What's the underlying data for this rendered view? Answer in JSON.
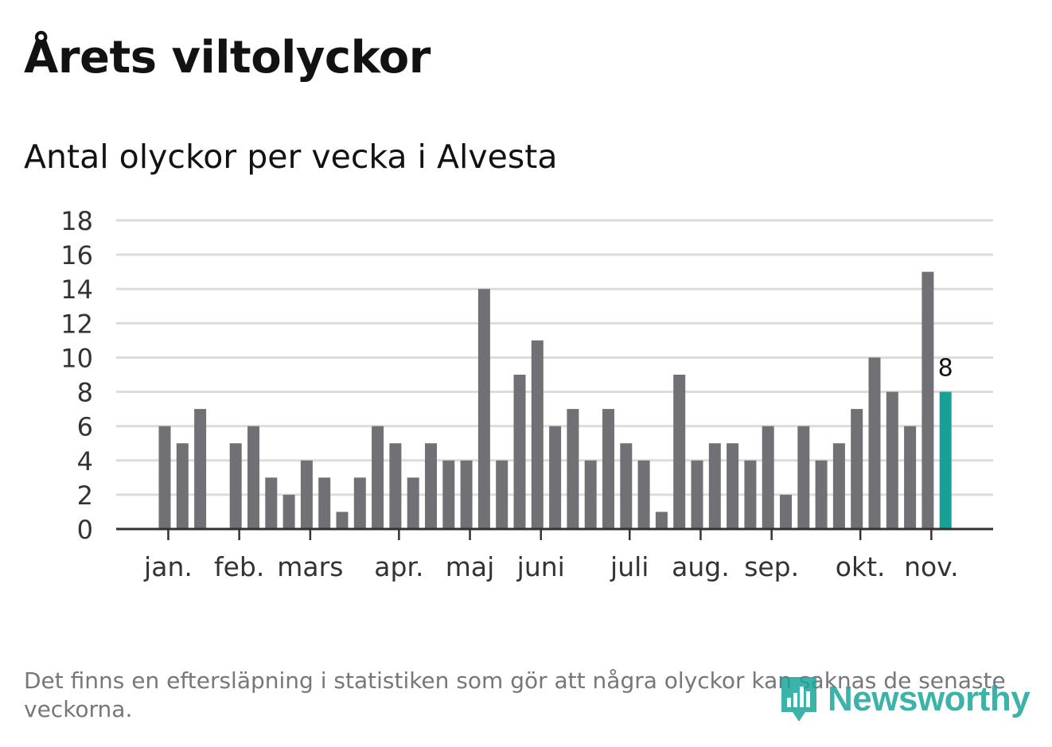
{
  "header": {
    "title": "Årets viltolyckor",
    "subtitle": "Antal olyckor per vecka i Alvesta"
  },
  "footer": {
    "note": "Det finns en eftersläpning i statistiken som gör att några olyckor kan saknas de senaste veckorna.",
    "brand": "Newsworthy"
  },
  "colors": {
    "bar": "#717175",
    "highlight": "#16a096",
    "grid": "#dcdcdc",
    "axis": "#333333",
    "text": "#121212",
    "brand": "#1aa69a"
  },
  "chart_data": {
    "type": "bar",
    "title": "Antal olyckor per vecka i Alvesta",
    "xlabel": "",
    "ylabel": "",
    "ylim": [
      0,
      18
    ],
    "yticks": [
      0,
      2,
      4,
      6,
      8,
      10,
      12,
      14,
      16,
      18
    ],
    "grid": true,
    "weeks": [
      1,
      2,
      3,
      4,
      5,
      6,
      7,
      8,
      9,
      10,
      11,
      12,
      13,
      14,
      15,
      16,
      17,
      18,
      19,
      20,
      21,
      22,
      23,
      24,
      25,
      26,
      27,
      28,
      29,
      30,
      31,
      32,
      33,
      34,
      35,
      36,
      37,
      38,
      39,
      40,
      41,
      42,
      43,
      44,
      45
    ],
    "values": [
      6,
      5,
      7,
      0,
      5,
      6,
      3,
      2,
      4,
      3,
      1,
      3,
      6,
      5,
      3,
      5,
      4,
      4,
      14,
      4,
      9,
      11,
      6,
      7,
      4,
      7,
      5,
      4,
      1,
      9,
      4,
      5,
      5,
      4,
      6,
      2,
      6,
      4,
      5,
      7,
      10,
      8,
      6,
      15,
      8
    ],
    "highlight_index": 44,
    "highlight_label": "8",
    "month_labels": [
      {
        "label": "jan.",
        "week": 1.2
      },
      {
        "label": "feb.",
        "week": 5.2
      },
      {
        "label": "mars",
        "week": 9.2
      },
      {
        "label": "apr.",
        "week": 14.2
      },
      {
        "label": "maj",
        "week": 18.2
      },
      {
        "label": "juni",
        "week": 22.2
      },
      {
        "label": "juli",
        "week": 27.2
      },
      {
        "label": "aug.",
        "week": 31.2
      },
      {
        "label": "sep.",
        "week": 35.2
      },
      {
        "label": "okt.",
        "week": 40.2
      },
      {
        "label": "nov.",
        "week": 44.2
      }
    ]
  }
}
